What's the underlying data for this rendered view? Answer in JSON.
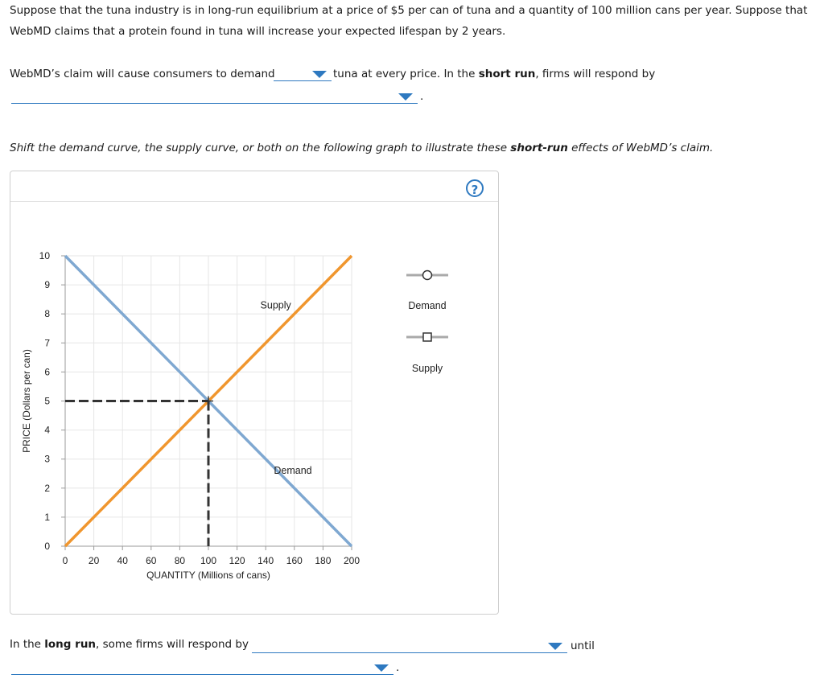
{
  "question": {
    "intro_line1": "Suppose that the tuna industry is in long-run equilibrium at a price of $5 per can of tuna and a quantity of 100 million cans per year. Suppose that",
    "intro_line2": "WebMD claims that a protein found in tuna will increase your expected lifespan by 2 years.",
    "demand_prefix": "WebMD’s claim will cause consumers to demand",
    "demand_suffix_a": "tuna at every price. In the ",
    "short_run": "short run",
    "demand_suffix_b": ", firms will respond by",
    "period": ".",
    "instruction_a": "Shift the demand curve, the supply curve, or both on the following graph to illustrate these ",
    "instruction_bold": "short-run",
    "instruction_b": " effects of WebMD’s claim.",
    "long_run_a": "In the ",
    "long_run_bold": "long run",
    "long_run_b": ", some firms will respond by",
    "until": "until",
    "period2": "."
  },
  "help_label": "?",
  "legend": {
    "demand": "Demand",
    "supply": "Supply"
  },
  "colors": {
    "demand": "#7fa8d1",
    "supply": "#f0962e",
    "link": "#2e79c0",
    "guide": "#333333"
  },
  "chart_data": {
    "type": "line",
    "xlabel": "QUANTITY (Millions of cans)",
    "ylabel": "PRICE (Dollars per can)",
    "xlim": [
      0,
      200
    ],
    "ylim": [
      0,
      10
    ],
    "xticks": [
      0,
      20,
      40,
      60,
      80,
      100,
      120,
      140,
      160,
      180,
      200
    ],
    "yticks": [
      0,
      1,
      2,
      3,
      4,
      5,
      6,
      7,
      8,
      9,
      10
    ],
    "grid": true,
    "series": [
      {
        "name": "Supply",
        "x": [
          0,
          200
        ],
        "y": [
          0,
          10
        ]
      },
      {
        "name": "Demand",
        "x": [
          0,
          200
        ],
        "y": [
          10,
          0
        ]
      }
    ],
    "equilibrium": {
      "x": 100,
      "y": 5
    }
  }
}
